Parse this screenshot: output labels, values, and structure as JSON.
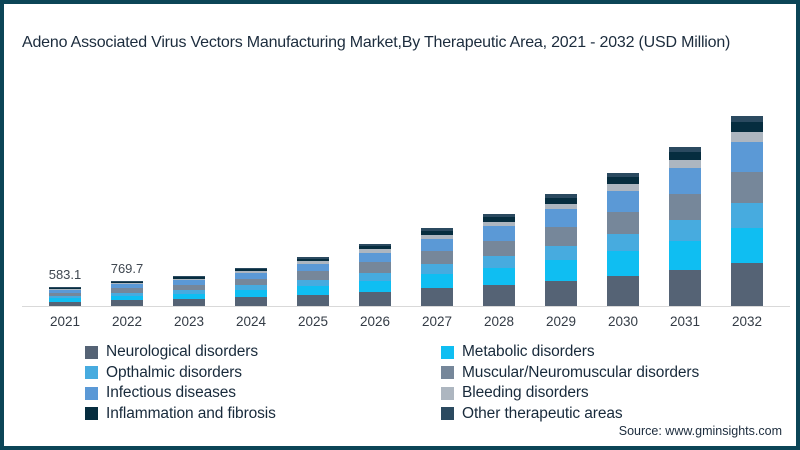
{
  "source": "Source: www.gminsights.com",
  "frame_border_color": "#0c4557",
  "axis_line_color": "#d9d9d9",
  "chart_data": {
    "type": "bar",
    "stacked": true,
    "title": "Adeno Associated Virus Vectors Manufacturing Market,By Therapeutic Area, 2021 - 2032 (USD Million)",
    "xlabel": "",
    "ylabel": "",
    "ylim": [
      0,
      6000
    ],
    "grid": false,
    "legend_position": "bottom",
    "legend_columns": 2,
    "categories": [
      "2021",
      "2022",
      "2023",
      "2024",
      "2025",
      "2026",
      "2027",
      "2028",
      "2029",
      "2030",
      "2031",
      "2032"
    ],
    "totals": [
      583.1,
      769.7,
      925,
      1170,
      1510,
      1900,
      2400,
      2830,
      3440,
      4090,
      4890,
      5840
    ],
    "value_labels": [
      "583.1",
      "769.7",
      "",
      "",
      "",
      "",
      "",
      "",
      "",
      "",
      "",
      ""
    ],
    "series": [
      {
        "name": "Neurological disorders",
        "color": "#556375",
        "values": [
          131.2,
          173.2,
          208.1,
          263.3,
          339.8,
          427.5,
          540.0,
          636.8,
          774.0,
          920.3,
          1100.3,
          1314.0
        ]
      },
      {
        "name": "Metabolic disorders",
        "color": "#0fbef2",
        "values": [
          107.9,
          142.4,
          171.1,
          216.5,
          279.4,
          351.5,
          444.0,
          523.6,
          636.4,
          756.7,
          904.7,
          1080.4
        ]
      },
      {
        "name": "Opthalmic disorders",
        "color": "#47abdf",
        "values": [
          75.8,
          100.1,
          120.3,
          152.1,
          196.3,
          247.0,
          312.0,
          367.9,
          447.2,
          531.7,
          635.7,
          759.2
        ]
      },
      {
        "name": "Muscular/Neuromuscular disorders",
        "color": "#76879a",
        "values": [
          96.2,
          127.0,
          152.6,
          193.1,
          249.2,
          313.5,
          396.0,
          467.0,
          567.6,
          674.9,
          806.9,
          963.6
        ]
      },
      {
        "name": "Infectious diseases",
        "color": "#5b99d6",
        "values": [
          93.3,
          123.2,
          148.0,
          187.2,
          241.6,
          304.0,
          384.0,
          452.8,
          550.4,
          654.4,
          782.4,
          934.4
        ]
      },
      {
        "name": "Bleeding disorders",
        "color": "#adb6c0",
        "values": [
          29.2,
          38.5,
          46.3,
          58.5,
          75.5,
          95.0,
          120.0,
          141.5,
          172.0,
          204.5,
          244.5,
          292.0
        ]
      },
      {
        "name": "Inflammation and fibrosis",
        "color": "#062d3f",
        "values": [
          30.3,
          40.0,
          48.1,
          60.8,
          78.5,
          98.8,
          124.8,
          147.2,
          178.9,
          212.7,
          254.3,
          303.7
        ]
      },
      {
        "name": "Other therapeutic areas",
        "color": "#2b4a60",
        "values": [
          19.2,
          25.3,
          30.5,
          38.5,
          49.7,
          62.7,
          79.2,
          93.2,
          113.5,
          134.8,
          161.2,
          192.7
        ]
      }
    ]
  }
}
